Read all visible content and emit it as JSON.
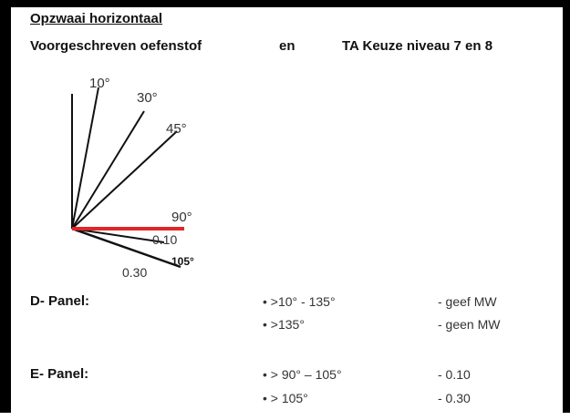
{
  "header": {
    "title": "Opzwaai horizontaal",
    "left": "Voorgeschreven oefenstof",
    "middle": "en",
    "right": "TA Keuze niveau 7 en 8"
  },
  "diagram": {
    "labels": [
      "10°",
      "30°",
      "45°",
      "90°",
      "0.10",
      "0.30",
      "105°"
    ]
  },
  "panels": [
    {
      "name": "D- Panel:",
      "rows": [
        [
          "• >10° - 135°",
          "- geef MW"
        ],
        [
          "• >135°",
          "- geen MW"
        ]
      ]
    },
    {
      "name": "E- Panel:",
      "rows": [
        [
          "• > 90° – 105°",
          "- 0.10"
        ],
        [
          "• > 105°",
          "- 0.30"
        ]
      ]
    }
  ]
}
